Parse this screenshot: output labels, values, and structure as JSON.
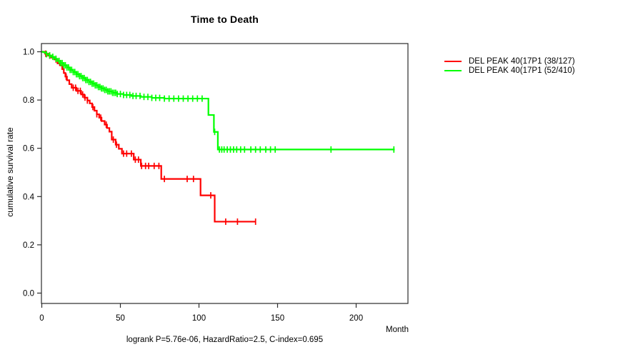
{
  "chart_data": {
    "type": "line",
    "subtype": "kaplan-meier-survival-step",
    "title": "Time to Death",
    "xlabel": "Month",
    "ylabel": "cumulative survival rate",
    "annotation": "logrank P=5.76e-06, HazardRatio=2.5, C-index=0.695",
    "x_ticks": [
      0,
      50,
      100,
      150,
      200
    ],
    "y_ticks": [
      0.0,
      0.2,
      0.4,
      0.6,
      0.8,
      1.0
    ],
    "xlim": [
      0,
      233
    ],
    "ylim": [
      0.0,
      1.0
    ],
    "grid": false,
    "legend_position": "right-outside",
    "series": [
      {
        "name": "DEL PEAK 40(17P1 (38/127)",
        "color": "#ff0000",
        "end_month": 136,
        "steps": [
          [
            0,
            1.0
          ],
          [
            2,
            0.992
          ],
          [
            4,
            0.984
          ],
          [
            6,
            0.976
          ],
          [
            8,
            0.968
          ],
          [
            10,
            0.952
          ],
          [
            11.5,
            0.944
          ],
          [
            13,
            0.928
          ],
          [
            14,
            0.912
          ],
          [
            15,
            0.897
          ],
          [
            16,
            0.882
          ],
          [
            17.5,
            0.866
          ],
          [
            19,
            0.851
          ],
          [
            22,
            0.838
          ],
          [
            25,
            0.823
          ],
          [
            27,
            0.81
          ],
          [
            29,
            0.798
          ],
          [
            30.5,
            0.786
          ],
          [
            32,
            0.771
          ],
          [
            33.5,
            0.756
          ],
          [
            35,
            0.741
          ],
          [
            36.5,
            0.727
          ],
          [
            38,
            0.713
          ],
          [
            40,
            0.698
          ],
          [
            41.5,
            0.684
          ],
          [
            43,
            0.669
          ],
          [
            44.5,
            0.636
          ],
          [
            47,
            0.615
          ],
          [
            49,
            0.598
          ],
          [
            51,
            0.578
          ],
          [
            58.5,
            0.553
          ],
          [
            63,
            0.527
          ],
          [
            76,
            0.473
          ],
          [
            101,
            0.405
          ],
          [
            110,
            0.296
          ]
        ],
        "censor_months": [
          2.5,
          5,
          9,
          15.5,
          20,
          21.5,
          23,
          24.5,
          26,
          27.5,
          29,
          32.5,
          35,
          37.5,
          41,
          45.5,
          47.5,
          52,
          54,
          57,
          59.5,
          61.5,
          63.5,
          66,
          68,
          71.5,
          74.5,
          78,
          92.5,
          96.5,
          107.5,
          117,
          124.5,
          136
        ]
      },
      {
        "name": "DEL PEAK 40(17P1 (52/410)",
        "color": "#00ff00",
        "end_month": 224.5,
        "steps": [
          [
            0,
            1.0
          ],
          [
            1,
            0.998
          ],
          [
            2,
            0.995
          ],
          [
            3,
            0.99
          ],
          [
            4.5,
            0.985
          ],
          [
            6,
            0.979
          ],
          [
            8,
            0.971
          ],
          [
            10,
            0.962
          ],
          [
            12,
            0.953
          ],
          [
            14,
            0.944
          ],
          [
            16,
            0.935
          ],
          [
            18,
            0.925
          ],
          [
            20,
            0.916
          ],
          [
            22,
            0.907
          ],
          [
            24,
            0.899
          ],
          [
            26,
            0.891
          ],
          [
            28,
            0.883
          ],
          [
            30,
            0.875
          ],
          [
            32,
            0.868
          ],
          [
            34,
            0.861
          ],
          [
            36,
            0.854
          ],
          [
            38,
            0.848
          ],
          [
            40,
            0.842
          ],
          [
            42,
            0.836
          ],
          [
            45,
            0.83
          ],
          [
            48,
            0.825
          ],
          [
            52,
            0.821
          ],
          [
            57,
            0.817
          ],
          [
            63,
            0.813
          ],
          [
            70,
            0.809
          ],
          [
            78,
            0.806
          ],
          [
            106,
            0.738
          ],
          [
            109.5,
            0.668
          ],
          [
            112,
            0.595
          ]
        ],
        "censor_months": [
          3,
          5,
          7,
          9,
          11,
          12,
          13,
          14,
          15,
          16,
          17,
          18,
          19,
          20,
          21,
          22,
          23,
          24,
          25,
          26,
          27,
          28,
          29,
          30,
          31,
          32,
          33,
          34,
          35,
          36,
          37,
          38,
          39,
          40,
          41,
          42,
          43,
          44,
          45,
          46,
          47,
          48,
          50,
          52,
          54,
          56,
          58,
          60,
          62.5,
          65,
          67.5,
          70,
          72.5,
          75,
          78,
          81,
          84,
          87,
          90,
          93,
          96,
          99,
          102,
          110,
          113,
          114.5,
          116,
          118,
          120,
          122,
          124,
          126.5,
          129,
          133,
          136,
          139,
          142.5,
          145.5,
          148.5,
          184,
          224
        ]
      }
    ]
  }
}
